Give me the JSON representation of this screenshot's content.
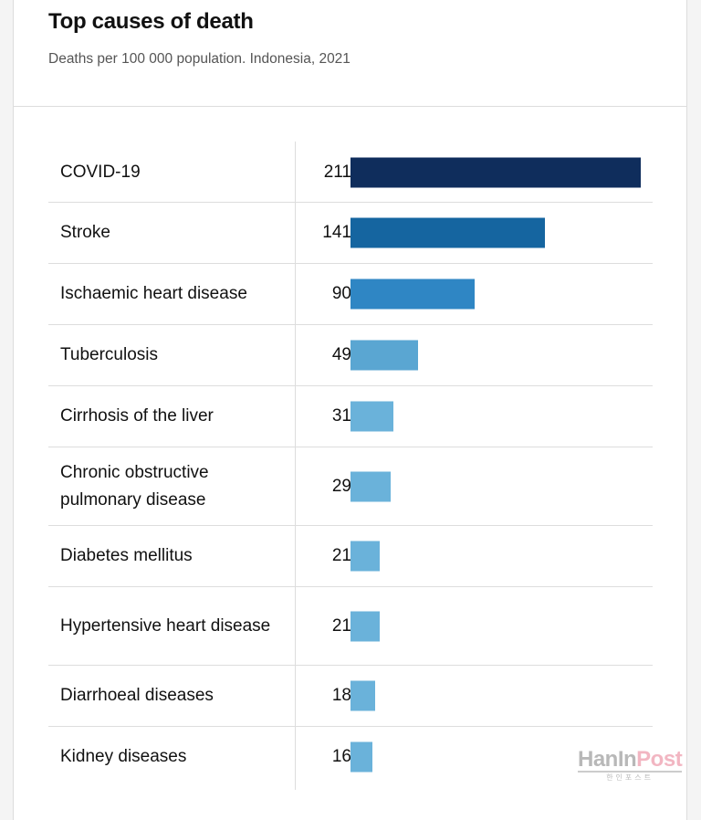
{
  "chart_data": {
    "type": "bar",
    "orientation": "horizontal",
    "title": "Top causes of death",
    "subtitle": "Deaths per 100 000 population. Indonesia, 2021",
    "categories": [
      "COVID-19",
      "Stroke",
      "Ischaemic heart disease",
      "Tuberculosis",
      "Cirrhosis of the liver",
      "Chronic obstructive pulmonary disease",
      "Diabetes mellitus",
      "Hypertensive heart disease",
      "Diarrhoeal diseases",
      "Kidney diseases"
    ],
    "values": [
      211,
      141,
      90,
      49,
      31,
      29,
      21,
      21,
      18,
      16
    ],
    "colors": [
      "#0f2d5c",
      "#1565a0",
      "#2f86c4",
      "#5aa6d2",
      "#6ab2da",
      "#6ab2da",
      "#6ab2da",
      "#6ab2da",
      "#6ab2da",
      "#6ab2da"
    ],
    "xlim": [
      0,
      211
    ],
    "grid": false,
    "data_labels": true
  },
  "watermark": {
    "text": "HanInPost",
    "part1": "HanIn",
    "part2": "Post",
    "subtext": "한인포스트"
  }
}
